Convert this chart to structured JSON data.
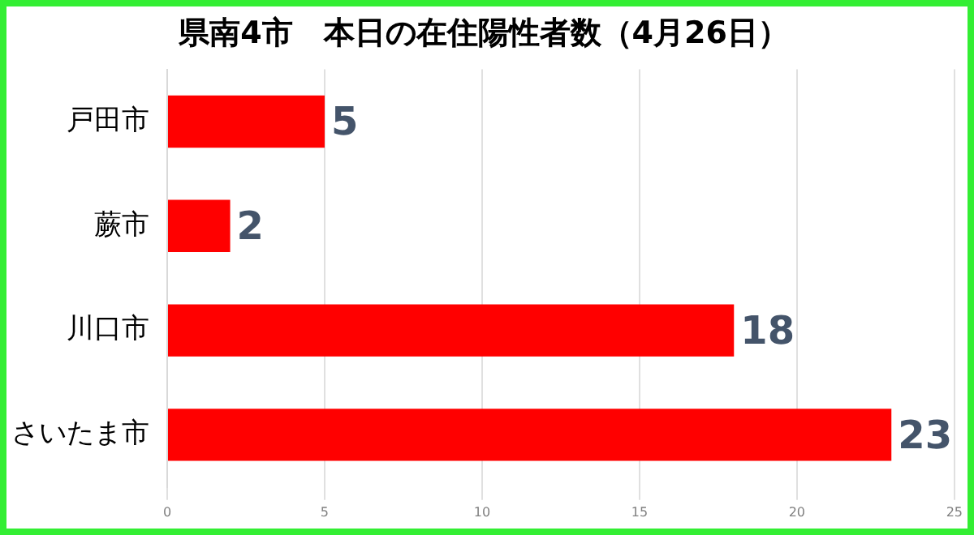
{
  "chart_data": {
    "type": "bar",
    "orientation": "horizontal",
    "title": "県南4市　本日の在住陽性者数（4月26日）",
    "categories": [
      "戸田市",
      "蕨市",
      "川口市",
      "さいたま市"
    ],
    "values": [
      5,
      2,
      18,
      23
    ],
    "color": "#ff0000",
    "xlim": [
      0,
      25
    ],
    "xticks": [
      0,
      5,
      10,
      15,
      20,
      25
    ],
    "grid": "x",
    "data_labels": true
  }
}
